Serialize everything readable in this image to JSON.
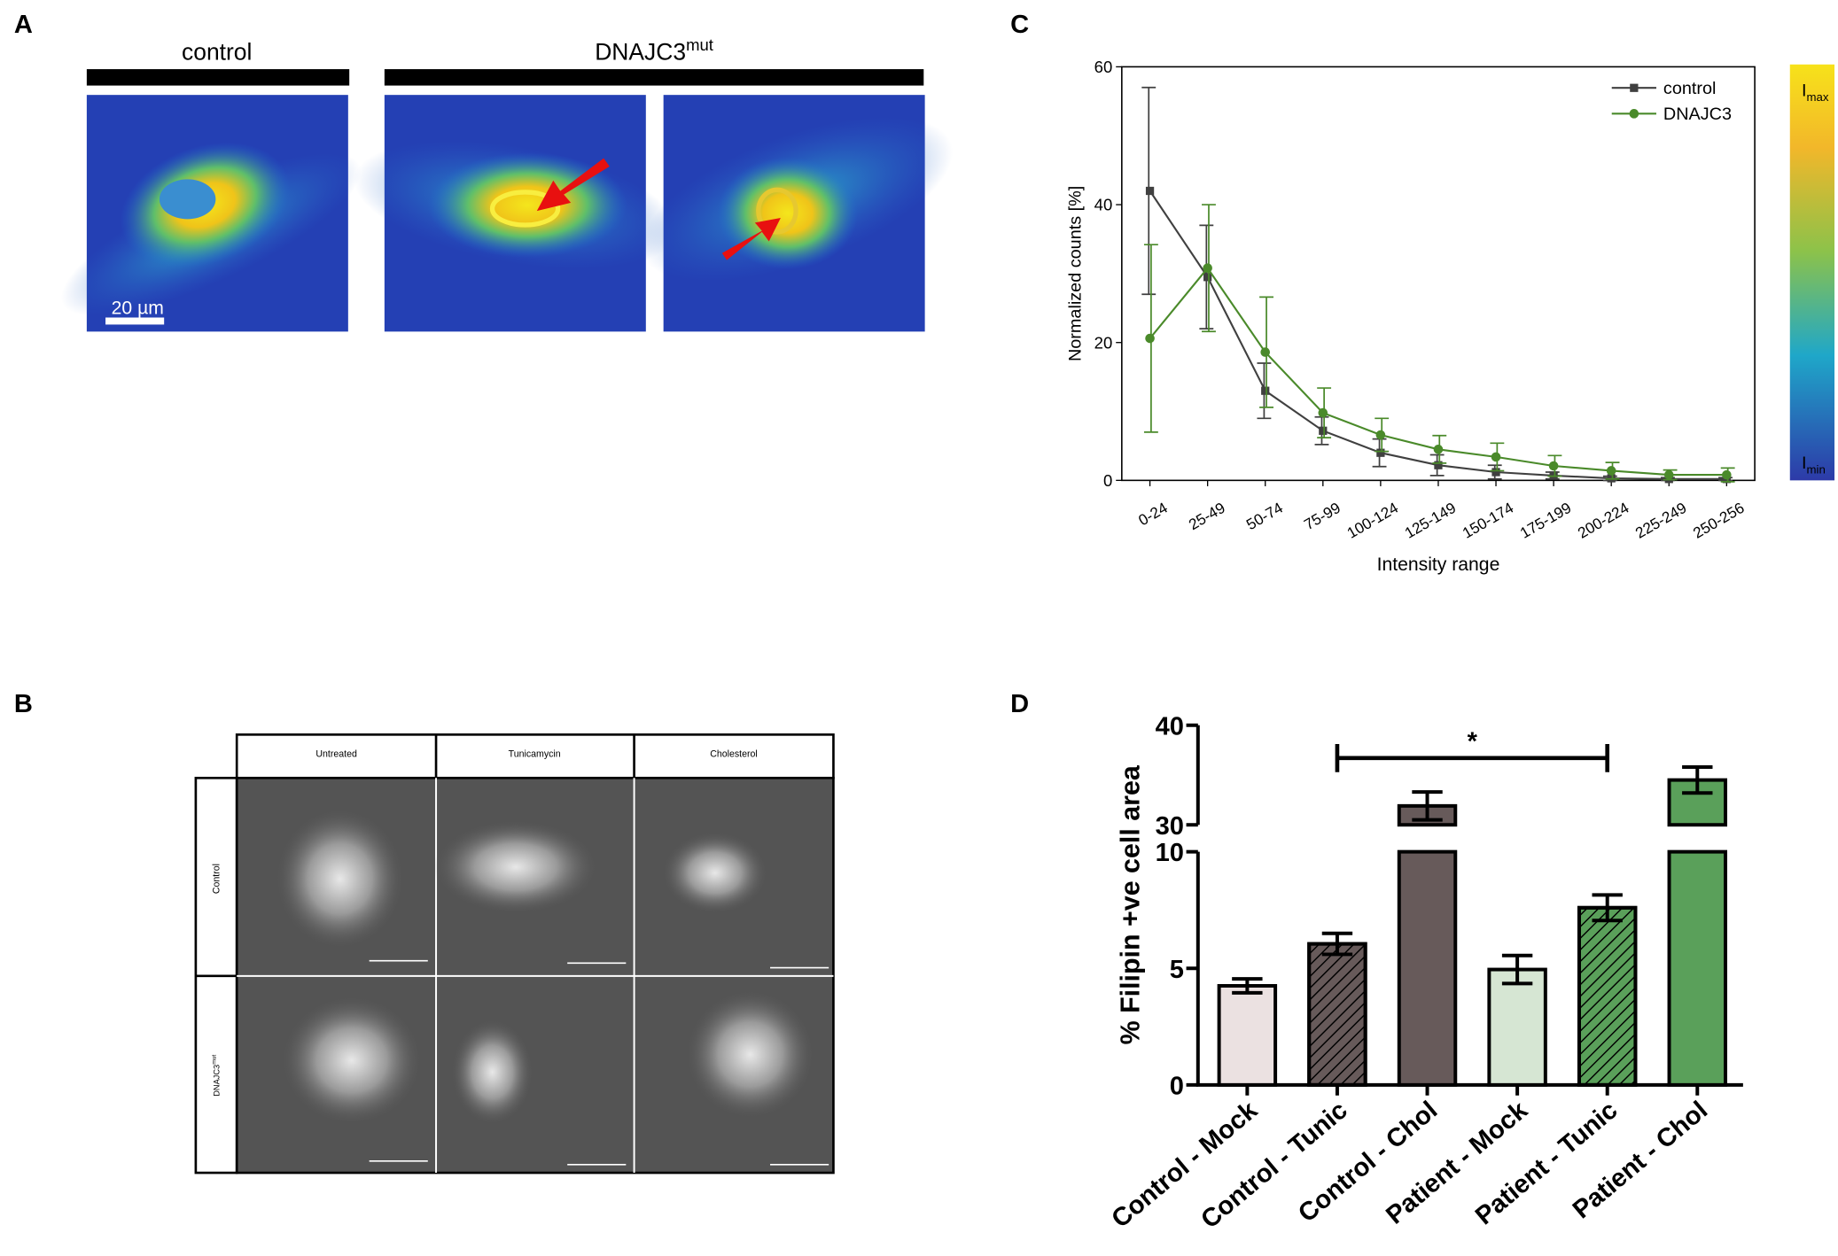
{
  "panel_labels": [
    "A",
    "B",
    "C",
    "D"
  ],
  "panel_a": {
    "groups": [
      {
        "base": "control",
        "sup": null
      },
      {
        "base": "DNAJC3",
        "sup": "mut"
      }
    ],
    "scale_bar": "20 µm"
  },
  "panel_b": {
    "columns": [
      "Untreated",
      "Tunicamycin",
      "Cholesterol"
    ],
    "rows": [
      {
        "base": "Control",
        "sup": null
      },
      {
        "base": "DNAJC3",
        "sup": "mut"
      }
    ]
  },
  "chart_data": [
    {
      "type": "line",
      "xlabel": "Intensity range",
      "ylabel": "Normalized counts [%]",
      "categories": [
        "0-24",
        "25-49",
        "50-74",
        "75-99",
        "100-124",
        "125-149",
        "150-174",
        "175-199",
        "200-224",
        "225-249",
        "250-256"
      ],
      "series": [
        {
          "name": "control",
          "color": "#404040",
          "marker": "square",
          "values": [
            42,
            29.5,
            13,
            7.2,
            4,
            2.2,
            1.2,
            0.7,
            0.3,
            0.2,
            0.2
          ],
          "errors": [
            15,
            7.5,
            4,
            2,
            2,
            1.5,
            1,
            0.5,
            0.3,
            0.2,
            0.2
          ]
        },
        {
          "name": "DNAJC3",
          "color": "#4a8a2a",
          "marker": "circle",
          "values": [
            20.6,
            30.8,
            18.6,
            9.8,
            6.6,
            4.5,
            3.4,
            2.1,
            1.4,
            0.8,
            0.8
          ],
          "errors": [
            13.6,
            9.2,
            8,
            3.6,
            2.4,
            2,
            2,
            1.5,
            1.2,
            0.7,
            1
          ]
        }
      ],
      "ylim": [
        0,
        60
      ],
      "yticks": [
        0,
        20,
        40,
        60
      ],
      "legend": "upper right",
      "colorbar": {
        "max": {
          "base": "I",
          "sub": "max"
        },
        "min": {
          "base": "I",
          "sub": "min"
        }
      }
    },
    {
      "type": "bar",
      "ylabel": "% Filipin +ve cell area",
      "categories": [
        "Control - Mock",
        "Control - Tunic",
        "Control - Chol",
        "Patient - Mock",
        "Patient - Tunic",
        "Patient - Chol"
      ],
      "values": [
        4.25,
        6.05,
        31.9,
        4.95,
        7.6,
        34.5
      ],
      "errors": [
        0.3,
        0.45,
        1.4,
        0.6,
        0.55,
        1.3
      ],
      "colors": [
        "#ebe1e1",
        "#675a5a",
        "#675a5a",
        "#d6e6d3",
        "#5aa05a",
        "#5aa05a"
      ],
      "hatch": [
        false,
        true,
        false,
        false,
        true,
        false
      ],
      "ylim": [
        0,
        40
      ],
      "ybreak": [
        10,
        30
      ],
      "yticks": [
        0,
        5,
        10,
        30,
        40
      ],
      "annotations": [
        {
          "text": "*",
          "from": 1,
          "to": 4
        }
      ]
    }
  ]
}
